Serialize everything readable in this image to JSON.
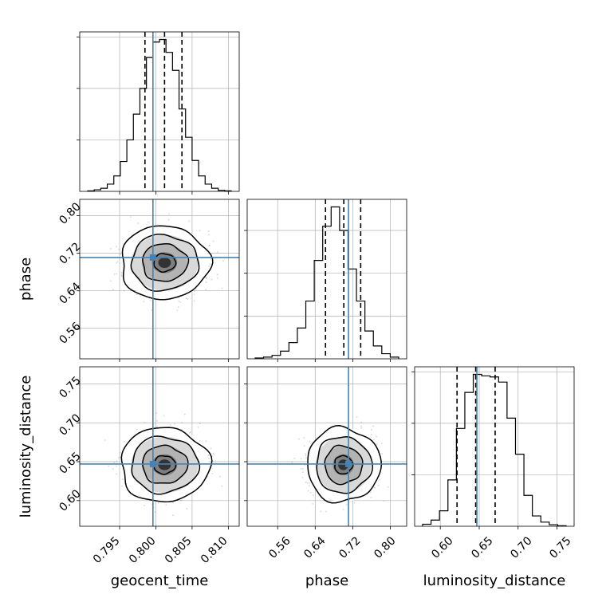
{
  "chart_data": {
    "type": "corner",
    "parameters": [
      "geocent_time",
      "phase",
      "luminosity_distance"
    ],
    "truths": {
      "geocent_time": 0.7996,
      "phase": 0.711,
      "luminosity_distance": 0.647
    },
    "grid": true,
    "colors": {
      "hist": "#000000",
      "truth": "#4682b4",
      "scatter": "#8c8c8c",
      "grid": "#b0b0b0"
    },
    "panels": {
      "geocent_time": {
        "range": [
          0.7895,
          0.8115
        ],
        "ticks": [
          0.795,
          0.8,
          0.805,
          0.81
        ],
        "tick_labels": [
          "0.795",
          "0.800",
          "0.805",
          "0.810"
        ],
        "mean": 0.8012,
        "quantiles": [
          0.7985,
          0.8012,
          0.8036
        ],
        "hist_counts": [
          1,
          3,
          6,
          14,
          30,
          58,
          100,
          150,
          200,
          260,
          290,
          295,
          270,
          235,
          160,
          105,
          60,
          30,
          14,
          6,
          2,
          1
        ]
      },
      "phase": {
        "range": [
          0.495,
          0.835
        ],
        "ticks": [
          0.56,
          0.64,
          0.72,
          0.8
        ],
        "tick_labels": [
          "0.56",
          "0.64",
          "0.72",
          "0.80"
        ],
        "mean": 0.7,
        "quantiles": [
          0.662,
          0.701,
          0.737
        ],
        "hist_counts": [
          2,
          4,
          8,
          18,
          38,
          72,
          135,
          230,
          310,
          355,
          300,
          210,
          135,
          65,
          30,
          12,
          4
        ]
      },
      "luminosity_distance": {
        "range": [
          0.567,
          0.772
        ],
        "ticks": [
          0.6,
          0.65,
          0.7,
          0.75
        ],
        "tick_labels": [
          "0.60",
          "0.65",
          "0.70",
          "0.75"
        ],
        "quantiles": [
          0.6215,
          0.6455,
          0.6705
        ],
        "hist_counts": [
          4,
          12,
          30,
          90,
          190,
          260,
          295,
          292,
          290,
          280,
          210,
          140,
          60,
          20,
          8,
          3,
          1
        ]
      }
    },
    "density": {
      "geocent_time_vs_phase": {
        "x": "geocent_time",
        "y": "phase",
        "center": [
          0.8012,
          0.7
        ],
        "sd": [
          0.0025,
          0.032
        ]
      },
      "geocent_time_vs_luminosity_distance": {
        "x": "geocent_time",
        "y": "luminosity_distance",
        "center": [
          0.8012,
          0.646
        ],
        "sd": [
          0.0025,
          0.0195
        ]
      },
      "phase_vs_luminosity_distance": {
        "x": "phase",
        "y": "luminosity_distance",
        "center": [
          0.7,
          0.646
        ],
        "sd": [
          0.032,
          0.0195
        ]
      }
    }
  }
}
